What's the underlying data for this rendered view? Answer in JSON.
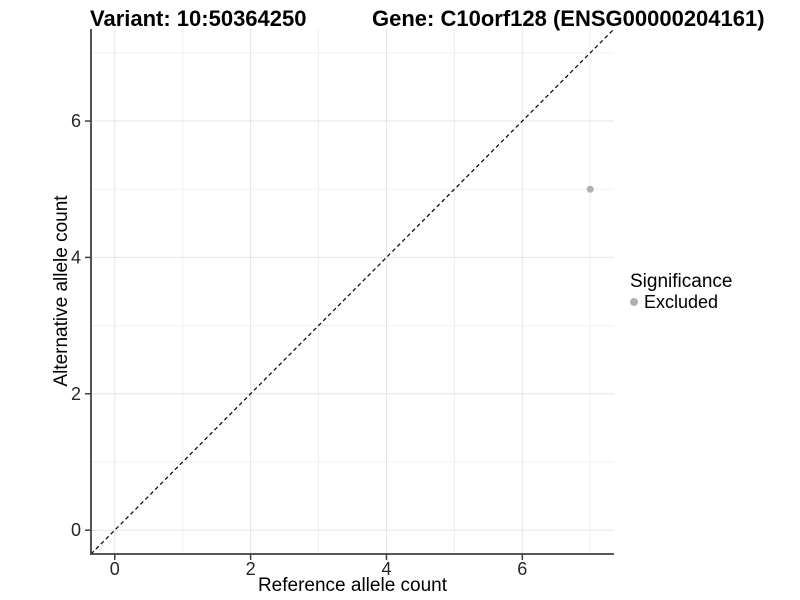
{
  "chart_data": {
    "type": "scatter",
    "title_left": "Variant: 10:50364250",
    "title_right": "Gene: C10orf128 (ENSG00000204161)",
    "xlabel": "Reference allele count",
    "ylabel": "Alternative allele count",
    "xlim": [
      -0.35,
      7.35
    ],
    "ylim": [
      -0.35,
      7.35
    ],
    "xticks": [
      0,
      2,
      4,
      6
    ],
    "yticks": [
      0,
      2,
      4,
      6
    ],
    "x_minor_ticks": [
      1,
      3,
      5,
      7
    ],
    "y_minor_ticks": [
      1,
      3,
      5,
      7
    ],
    "grid": "major+minor",
    "reference_line": {
      "type": "identity",
      "style": "dashed",
      "color": "#000000"
    },
    "series": [
      {
        "name": "Excluded",
        "color": "#b0b0b0",
        "marker": "circle",
        "points": [
          [
            7,
            5
          ]
        ]
      }
    ],
    "legend": {
      "title": "Significance",
      "position": "right",
      "entries": [
        {
          "label": "Excluded",
          "color": "#b0b0b0"
        }
      ]
    },
    "colors": {
      "axis_line": "#404040",
      "tick_label": "#262626",
      "grid_major": "#e4e4e4",
      "grid_minor": "#efefef",
      "background": "#ffffff"
    }
  }
}
